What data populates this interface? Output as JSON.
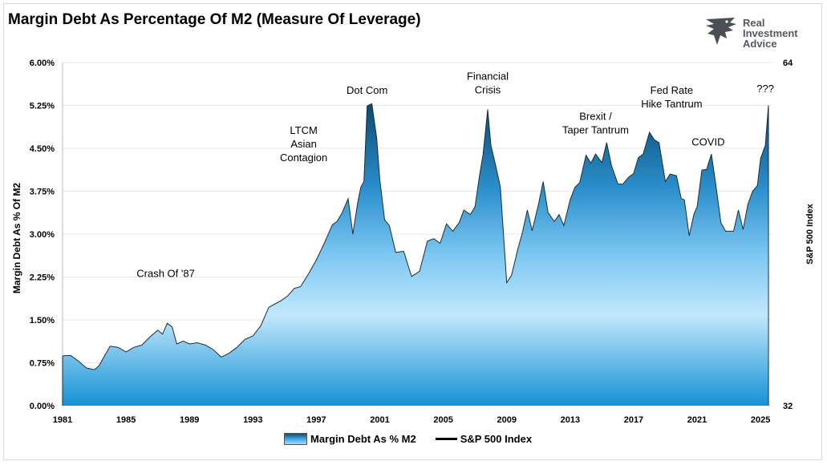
{
  "title": "Margin Debt As Percentage Of M2 (Measure Of Leverage)",
  "logo": {
    "lines": [
      "Real",
      "Investment",
      "Advice"
    ],
    "icon": "eagle-icon"
  },
  "colors": {
    "area_top": "#0a4a72",
    "area_mid": "#bfe5fb",
    "area_bottom": "#1592d6",
    "outline": "#1a2e3a",
    "grid": "#e6e6e6"
  },
  "chart_data": {
    "type": "area",
    "title": "Margin Debt As Percentage Of M2 (Measure Of Leverage)",
    "ylabel": "Margin Debt As % Of M2",
    "ylabel_right": "S&P 500 Index",
    "ylim": [
      0,
      6
    ],
    "ylim_right": [
      32,
      64
    ],
    "y_ticks": [
      "0.00%",
      "0.75%",
      "1.50%",
      "2.25%",
      "3.00%",
      "3.75%",
      "4.50%",
      "5.25%",
      "6.00%"
    ],
    "y_right_ticks": [
      "32",
      "64"
    ],
    "xlim": [
      1981,
      2025.7
    ],
    "x_ticks": [
      "1981",
      "1985",
      "1989",
      "1993",
      "1997",
      "2001",
      "2005",
      "2009",
      "2013",
      "2017",
      "2021",
      "2025"
    ],
    "legend": [
      "Margin Debt As % M2",
      "S&P 500 Index"
    ],
    "series": [
      {
        "name": "Margin Debt As % M2",
        "x": [
          1981.0,
          1981.5,
          1982.0,
          1982.5,
          1983.0,
          1983.3,
          1983.6,
          1984.0,
          1984.5,
          1985.0,
          1985.5,
          1986.0,
          1986.5,
          1987.0,
          1987.3,
          1987.6,
          1987.9,
          1988.2,
          1988.6,
          1989.0,
          1989.5,
          1990.0,
          1990.5,
          1991.0,
          1991.5,
          1992.0,
          1992.5,
          1993.0,
          1993.5,
          1994.0,
          1994.4,
          1994.8,
          1995.2,
          1995.6,
          1996.0,
          1996.5,
          1997.0,
          1997.5,
          1998.0,
          1998.3,
          1998.6,
          1999.0,
          1999.3,
          1999.6,
          1999.8,
          2000.0,
          2000.2,
          2000.5,
          2000.8,
          2001.0,
          2001.3,
          2001.6,
          2002.0,
          2002.5,
          2003.0,
          2003.5,
          2004.0,
          2004.4,
          2004.8,
          2005.2,
          2005.6,
          2006.0,
          2006.3,
          2006.7,
          2007.0,
          2007.3,
          2007.5,
          2007.8,
          2008.0,
          2008.3,
          2008.6,
          2009.0,
          2009.3,
          2009.7,
          2010.0,
          2010.3,
          2010.6,
          2011.0,
          2011.3,
          2011.6,
          2012.0,
          2012.3,
          2012.6,
          2013.0,
          2013.3,
          2013.6,
          2014.0,
          2014.3,
          2014.6,
          2015.0,
          2015.3,
          2015.6,
          2016.0,
          2016.3,
          2016.7,
          2017.0,
          2017.3,
          2017.6,
          2018.0,
          2018.3,
          2018.6,
          2019.0,
          2019.3,
          2019.7,
          2020.0,
          2020.2,
          2020.5,
          2020.8,
          2021.0,
          2021.3,
          2021.6,
          2021.9,
          2022.2,
          2022.5,
          2022.8,
          2023.0,
          2023.3,
          2023.6,
          2023.9,
          2024.2,
          2024.5,
          2024.8,
          2025.0,
          2025.3,
          2025.5
        ],
        "values": [
          0.87,
          0.88,
          0.78,
          0.66,
          0.63,
          0.7,
          0.85,
          1.04,
          1.02,
          0.94,
          1.02,
          1.06,
          1.2,
          1.32,
          1.25,
          1.44,
          1.38,
          1.08,
          1.13,
          1.08,
          1.1,
          1.06,
          0.98,
          0.85,
          0.92,
          1.02,
          1.16,
          1.22,
          1.4,
          1.72,
          1.78,
          1.84,
          1.92,
          2.05,
          2.08,
          2.3,
          2.55,
          2.84,
          3.16,
          3.22,
          3.36,
          3.62,
          3.0,
          3.54,
          3.82,
          3.92,
          5.24,
          5.28,
          4.68,
          3.95,
          3.25,
          3.15,
          2.68,
          2.7,
          2.26,
          2.35,
          2.88,
          2.92,
          2.84,
          3.18,
          3.05,
          3.2,
          3.42,
          3.34,
          3.48,
          4.05,
          4.38,
          5.18,
          4.55,
          4.2,
          3.82,
          2.15,
          2.28,
          2.74,
          3.04,
          3.42,
          3.06,
          3.52,
          3.92,
          3.38,
          3.22,
          3.34,
          3.15,
          3.6,
          3.82,
          3.9,
          4.38,
          4.24,
          4.4,
          4.25,
          4.6,
          4.2,
          3.88,
          3.87,
          4.0,
          4.06,
          4.34,
          4.4,
          4.78,
          4.65,
          4.6,
          3.92,
          4.05,
          4.02,
          3.62,
          3.6,
          2.97,
          3.35,
          3.48,
          4.12,
          4.13,
          4.4,
          3.82,
          3.2,
          3.05,
          3.05,
          3.05,
          3.42,
          3.08,
          3.52,
          3.75,
          3.85,
          4.32,
          4.55,
          5.25
        ]
      },
      {
        "name": "S&P 500 Index",
        "values": []
      }
    ],
    "annotations": [
      {
        "text": [
          "Crash Of '87"
        ],
        "x": 1987.5,
        "y": 2.25
      },
      {
        "text": [
          "LTCM",
          "Asian",
          "Contagion"
        ],
        "x": 1996.2,
        "y": 4.75
      },
      {
        "text": [
          "Dot Com"
        ],
        "x": 2000.2,
        "y": 5.45
      },
      {
        "text": [
          "Financial",
          "Crisis"
        ],
        "x": 2007.8,
        "y": 5.7
      },
      {
        "text": [
          "Brexit /",
          "Taper Tantrum"
        ],
        "x": 2014.6,
        "y": 5.0
      },
      {
        "text": [
          "Fed Rate",
          "Hike Tantrum"
        ],
        "x": 2019.4,
        "y": 5.45
      },
      {
        "text": [
          "COVID"
        ],
        "x": 2021.7,
        "y": 4.55
      },
      {
        "text": [
          "???"
        ],
        "x": 2025.3,
        "y": 5.48
      }
    ]
  }
}
